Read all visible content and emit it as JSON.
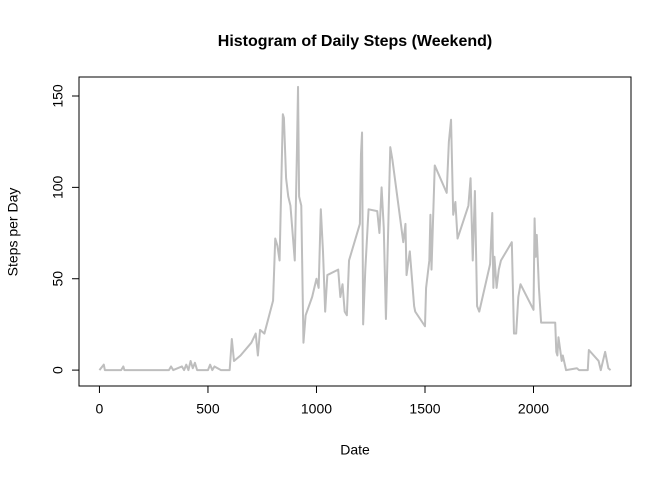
{
  "chart_data": {
    "type": "line",
    "title": "Histogram of Daily Steps (Weekend)",
    "x_label": "Date",
    "y_label": "Steps per Day",
    "x": [
      0,
      20,
      25,
      100,
      110,
      115,
      320,
      330,
      340,
      380,
      390,
      400,
      410,
      420,
      430,
      440,
      450,
      500,
      510,
      520,
      530,
      560,
      600,
      610,
      620,
      650,
      700,
      720,
      730,
      740,
      760,
      800,
      810,
      820,
      830,
      840,
      845,
      850,
      860,
      870,
      880,
      900,
      910,
      915,
      920,
      930,
      940,
      950,
      980,
      1000,
      1010,
      1020,
      1030,
      1040,
      1050,
      1100,
      1110,
      1120,
      1130,
      1140,
      1150,
      1200,
      1205,
      1210,
      1215,
      1225,
      1240,
      1280,
      1290,
      1300,
      1310,
      1320,
      1340,
      1350,
      1400,
      1410,
      1415,
      1430,
      1440,
      1450,
      1455,
      1500,
      1505,
      1520,
      1525,
      1530,
      1545,
      1600,
      1610,
      1620,
      1630,
      1640,
      1650,
      1700,
      1710,
      1720,
      1730,
      1740,
      1750,
      1800,
      1810,
      1815,
      1820,
      1830,
      1840,
      1850,
      1900,
      1910,
      1920,
      1930,
      1940,
      2000,
      2005,
      2010,
      2015,
      2025,
      2035,
      2100,
      2105,
      2110,
      2115,
      2130,
      2135,
      2150,
      2200,
      2210,
      2250,
      2255,
      2300,
      2310,
      2330,
      2345,
      2355
    ],
    "series": [
      {
        "color": "#bebebe",
        "values": [
          0,
          3,
          0,
          0,
          2,
          0,
          0,
          2,
          0,
          2,
          0,
          3,
          0,
          5,
          1,
          4,
          0,
          0,
          3,
          0,
          2,
          0,
          0,
          17,
          5,
          8,
          15,
          20,
          8,
          22,
          20,
          38,
          72,
          68,
          60,
          113,
          140,
          138,
          105,
          95,
          90,
          60,
          120,
          155,
          95,
          90,
          15,
          30,
          40,
          50,
          45,
          88,
          65,
          32,
          52,
          55,
          40,
          47,
          32,
          30,
          60,
          80,
          118,
          130,
          25,
          55,
          88,
          87,
          75,
          100,
          78,
          28,
          122,
          115,
          70,
          80,
          52,
          65,
          50,
          35,
          32,
          24,
          45,
          60,
          85,
          55,
          112,
          97,
          125,
          137,
          85,
          92,
          72,
          90,
          105,
          60,
          98,
          35,
          32,
          58,
          86,
          45,
          62,
          45,
          55,
          60,
          70,
          20,
          20,
          40,
          47,
          33,
          83,
          62,
          74,
          45,
          26,
          26,
          10,
          8,
          18,
          5,
          8,
          0,
          1,
          0,
          0,
          11,
          5,
          0,
          10,
          1,
          0
        ]
      }
    ],
    "xlim": [
      -94.2,
      2449.2
    ],
    "ylim": [
      -8.7,
      160.4
    ],
    "xticks": [
      0,
      500,
      1000,
      1500,
      2000
    ],
    "yticks": [
      0,
      50,
      100,
      150
    ]
  }
}
